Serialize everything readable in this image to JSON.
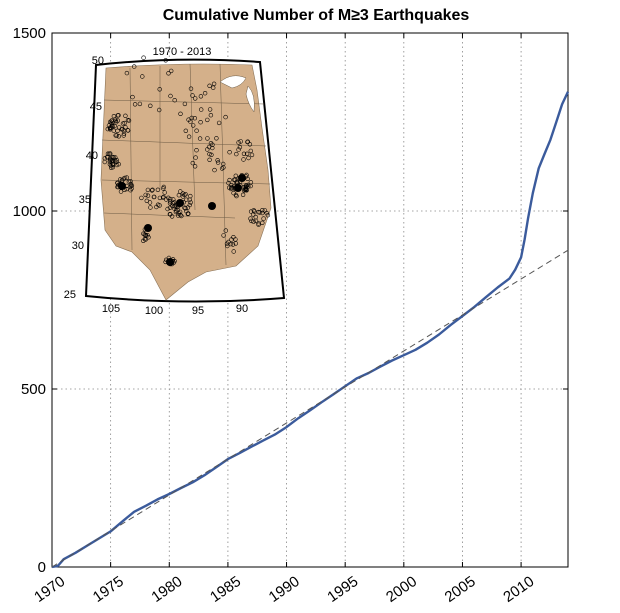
{
  "chart_data": {
    "type": "line",
    "title": "Cumulative Number of M≥3 Earthquakes",
    "xlabel": "",
    "ylabel": "",
    "xlim": [
      1970,
      2014
    ],
    "ylim": [
      0,
      1500
    ],
    "x_ticks": [
      1970,
      1975,
      1980,
      1985,
      1990,
      1995,
      2000,
      2005,
      2010
    ],
    "y_ticks": [
      0,
      500,
      1000,
      1500
    ],
    "grid": true,
    "series": [
      {
        "style": "solid",
        "color": "#3b5b9c",
        "x": [
          1970,
          1970.5,
          1971,
          1972,
          1973,
          1974,
          1975,
          1976,
          1977,
          1978,
          1979,
          1980,
          1981,
          1982,
          1983,
          1984,
          1985,
          1986,
          1987,
          1988,
          1989,
          1990,
          1991,
          1992,
          1993,
          1994,
          1995,
          1996,
          1997,
          1998,
          1999,
          2000,
          2001,
          2002,
          2003,
          2004,
          2005,
          2006,
          2007,
          2008,
          2009,
          2009.5,
          2010,
          2010.3,
          2010.6,
          2011,
          2011.5,
          2012,
          2012.5,
          2013,
          2013.5,
          2014
        ],
        "y": [
          0,
          3,
          22,
          40,
          60,
          80,
          100,
          128,
          155,
          172,
          190,
          205,
          222,
          238,
          258,
          280,
          303,
          320,
          338,
          355,
          372,
          393,
          418,
          440,
          463,
          485,
          508,
          530,
          545,
          563,
          580,
          595,
          610,
          630,
          653,
          680,
          705,
          730,
          758,
          785,
          810,
          835,
          870,
          920,
          980,
          1050,
          1120,
          1160,
          1200,
          1250,
          1300,
          1335
        ]
      },
      {
        "style": "dashed",
        "color": "#555555",
        "x": [
          1970,
          2014
        ],
        "y": [
          0,
          890
        ]
      }
    ]
  },
  "inset_map": {
    "title": "1970 - 2013",
    "fill_color": "#d4b08a",
    "lat_labels": [
      "50",
      "45",
      "40",
      "35",
      "30",
      "25"
    ],
    "lon_labels": [
      "105",
      "100",
      "95",
      "90"
    ]
  }
}
